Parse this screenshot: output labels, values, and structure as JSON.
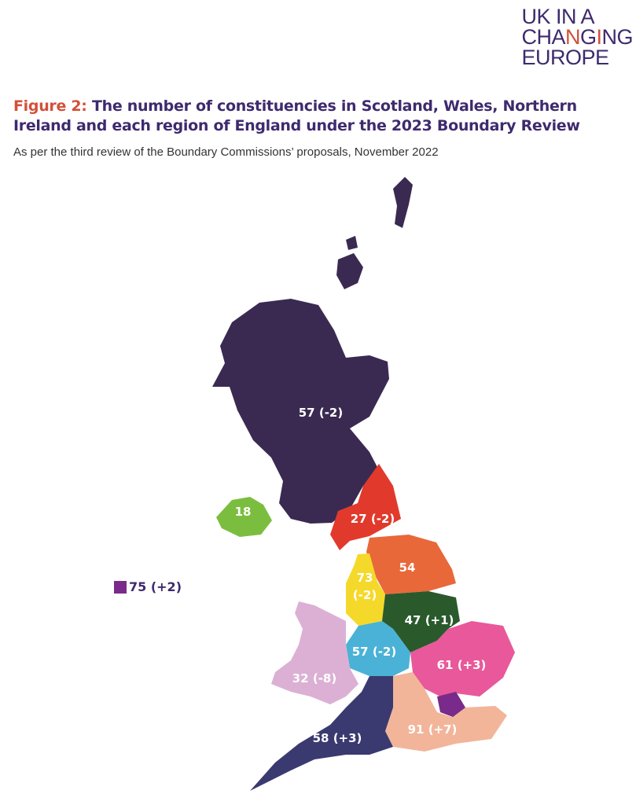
{
  "logo": {
    "line1": "UK IN A",
    "line2_pre": "CHA",
    "line2_n": "N",
    "line2_mid": "G",
    "line2_i": "I",
    "line2_post": "NG",
    "line3": "EUROPE"
  },
  "title": {
    "figure_label": "Figure 2:",
    "text": "The number of constituencies in Scotland, Wales, Northern Ireland and each region of England under the 2023 Boundary Review"
  },
  "subtitle": "As per the third review of the Boundary Commissions’ proposals, November 2022",
  "colors": {
    "title": "#3e2a6e",
    "figure_label": "#d4503a"
  },
  "regions": [
    {
      "id": "scotland",
      "label": "57 (-2)",
      "color": "#3a2a52"
    },
    {
      "id": "northern-ireland",
      "label": "18",
      "color": "#7bbe3f"
    },
    {
      "id": "north-east",
      "label": "27 (-2)",
      "color": "#e13a2c"
    },
    {
      "id": "yorkshire",
      "label": "54",
      "color": "#e8683a"
    },
    {
      "id": "north-west",
      "label": "73",
      "label2": "(-2)",
      "color": "#f5d92a"
    },
    {
      "id": "east-midlands",
      "label": "47 (+1)",
      "color": "#2a5a2c"
    },
    {
      "id": "west-midlands",
      "label": "57 (-2)",
      "color": "#4ab2d6"
    },
    {
      "id": "wales",
      "label": "32 (-8)",
      "color": "#dcb0d4"
    },
    {
      "id": "east-of-england",
      "label": "61 (+3)",
      "color": "#e8589a"
    },
    {
      "id": "london",
      "label": "",
      "color": "#7a2a8a"
    },
    {
      "id": "south-east",
      "label": "91 (+7)",
      "color": "#f2b59a"
    },
    {
      "id": "south-west",
      "label": "58 (+3)",
      "color": "#3a3a70"
    }
  ],
  "legend": {
    "label": "75 (+2)",
    "color": "#7a2a8a"
  }
}
